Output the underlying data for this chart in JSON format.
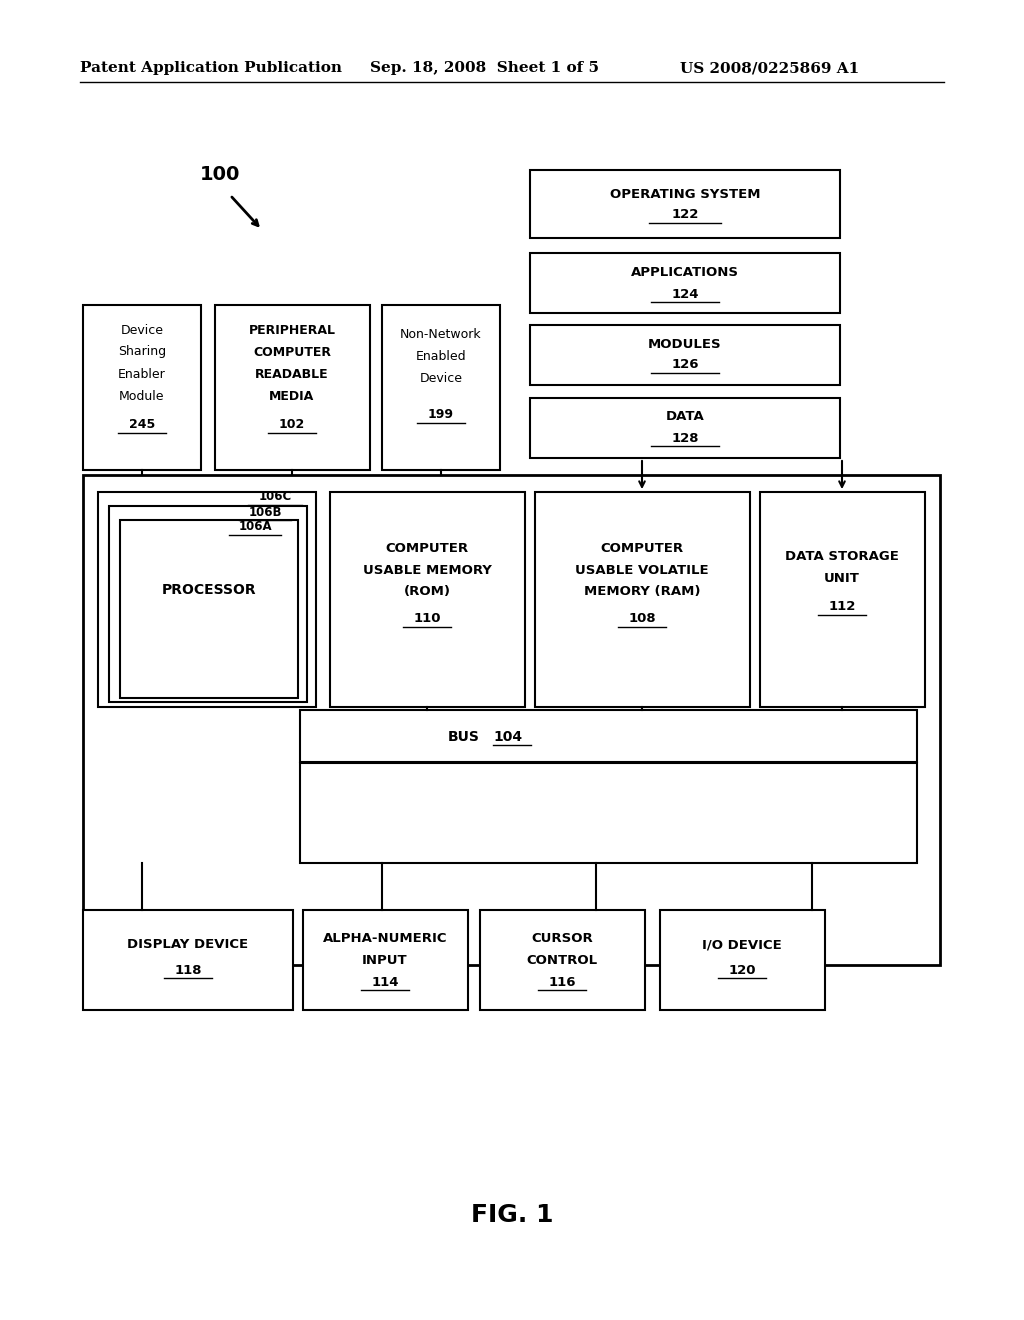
{
  "bg_color": "#ffffff",
  "header_left": "Patent Application Publication",
  "header_mid": "Sep. 18, 2008  Sheet 1 of 5",
  "header_right": "US 2008/0225869 A1",
  "fig_label": "FIG. 1"
}
